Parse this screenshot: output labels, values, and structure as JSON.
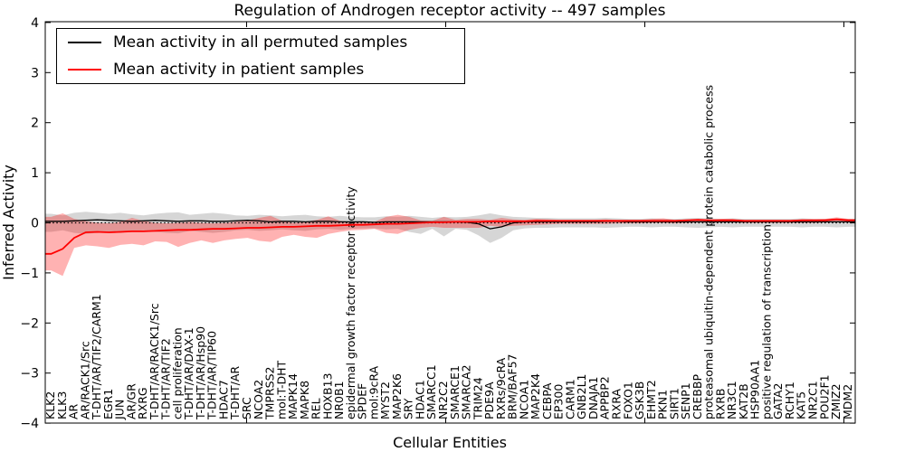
{
  "chart_data": {
    "type": "line",
    "title": "Regulation of Androgen receptor activity -- 497 samples",
    "xlabel": "Cellular Entities",
    "ylabel": "Inferred Activity",
    "ylim": [
      -4,
      4
    ],
    "grid": false,
    "legend_position": "upper left",
    "zero_line": true,
    "yticks": {
      "values": [
        4,
        3,
        2,
        1,
        0,
        -1,
        -2,
        -3,
        -4
      ],
      "labels": [
        "4",
        "3",
        "2",
        "1",
        "0",
        "−1",
        "−2",
        "−3",
        "−4"
      ]
    },
    "categories": [
      "KLK2",
      "KLK3",
      "AR",
      "AR/RACK1/Src",
      "T-DHT/AR/TIF2/CARM1",
      "EGR1",
      "JUN",
      "AR/GR",
      "RXRG",
      "T-DHT/AR/RACK1/Src",
      "T-DHT/AR/TIF2",
      "cell proliferation",
      "T-DHT/AR/DAX-1",
      "T-DHT/AR/Hsp90",
      "T-DHT/AR/TIP60",
      "HDAC7",
      "T-DHT/AR",
      "SRC",
      "NCOA2",
      "TMPRSS2",
      "mol:T-DHT",
      "MAPK14",
      "MAPK8",
      "REL",
      "HOXB13",
      "NR0B1",
      "epidermal growth factor receptor activity",
      "SPDEF",
      "mol:9cRA",
      "MYST2",
      "MAP2K6",
      "SRY",
      "HDAC1",
      "SMARCC1",
      "NR2C2",
      "SMARCE1",
      "SMARCA2",
      "TRIM24",
      "PDE9A",
      "RXRs/9cRA",
      "BRM/BAF57",
      "NCOA1",
      "MAP2K4",
      "CEBPA",
      "EP300",
      "CARM1",
      "GNB2L1",
      "DNAJA1",
      "APPBP2",
      "RXRA",
      "FOXO1",
      "GSK3B",
      "EHMT2",
      "PKN1",
      "SIRT1",
      "SENP1",
      "CREBBP",
      "proteasomal ubiquitin-dependent protein catabolic process",
      "RXRB",
      "NR3C1",
      "KAT2B",
      "HSP90AA1",
      "positive regulation of transcription",
      "GATA2",
      "RCHY1",
      "KAT5",
      "NR2C1",
      "POU2F1",
      "ZMIZ2",
      "MDM2"
    ],
    "series": [
      {
        "name": "Mean activity in all permuted samples",
        "color": "#000000",
        "values": [
          0.03,
          0.03,
          0.04,
          0.05,
          0.06,
          0.05,
          0.04,
          0.03,
          0.04,
          0.05,
          0.04,
          0.03,
          0.04,
          0.04,
          0.03,
          0.03,
          0.04,
          0.05,
          0.04,
          0.02,
          0.03,
          0.03,
          0.02,
          0.03,
          0.03,
          0.02,
          0.02,
          0.02,
          0.01,
          0.02,
          0.02,
          0.02,
          0.02,
          0.02,
          0.02,
          0.02,
          0.01,
          -0.02,
          -0.12,
          -0.08,
          0.0,
          0.02,
          0.02,
          0.02,
          0.02,
          0.02,
          0.02,
          0.02,
          0.03,
          0.03,
          0.02,
          0.02,
          0.02,
          0.02,
          0.02,
          0.02,
          0.02,
          0.02,
          0.02,
          0.02,
          0.02,
          0.02,
          0.02,
          0.02,
          0.02,
          0.02,
          0.02,
          0.02,
          0.02,
          0.02
        ],
        "band": {
          "fill": "#000000",
          "opacity": 0.16,
          "upper": [
            0.18,
            0.15,
            0.2,
            0.22,
            0.2,
            0.18,
            0.2,
            0.17,
            0.15,
            0.18,
            0.2,
            0.21,
            0.16,
            0.18,
            0.2,
            0.18,
            0.15,
            0.14,
            0.16,
            0.15,
            0.13,
            0.15,
            0.16,
            0.13,
            0.12,
            0.14,
            0.12,
            0.11,
            0.11,
            0.13,
            0.12,
            0.14,
            0.12,
            0.1,
            0.12,
            0.11,
            0.12,
            0.15,
            0.19,
            0.15,
            0.12,
            0.11,
            0.1,
            0.1,
            0.09,
            0.09,
            0.09,
            0.09,
            0.1,
            0.09,
            0.08,
            0.08,
            0.09,
            0.08,
            0.08,
            0.09,
            0.1,
            0.09,
            0.08,
            0.09,
            0.08,
            0.08,
            0.08,
            0.08,
            0.08,
            0.09,
            0.08,
            0.08,
            0.09,
            0.08
          ],
          "lower": [
            -0.18,
            -0.15,
            -0.2,
            -0.22,
            -0.2,
            -0.18,
            -0.2,
            -0.17,
            -0.15,
            -0.18,
            -0.2,
            -0.21,
            -0.16,
            -0.18,
            -0.2,
            -0.18,
            -0.15,
            -0.14,
            -0.16,
            -0.15,
            -0.13,
            -0.15,
            -0.16,
            -0.13,
            -0.12,
            -0.14,
            -0.12,
            -0.11,
            -0.11,
            -0.13,
            -0.12,
            -0.18,
            -0.22,
            -0.12,
            -0.27,
            -0.12,
            -0.14,
            -0.25,
            -0.4,
            -0.3,
            -0.15,
            -0.11,
            -0.1,
            -0.1,
            -0.09,
            -0.09,
            -0.09,
            -0.09,
            -0.1,
            -0.09,
            -0.08,
            -0.08,
            -0.09,
            -0.08,
            -0.08,
            -0.09,
            -0.1,
            -0.09,
            -0.08,
            -0.09,
            -0.08,
            -0.08,
            -0.08,
            -0.08,
            -0.08,
            -0.09,
            -0.08,
            -0.08,
            -0.09,
            -0.08
          ]
        }
      },
      {
        "name": "Mean activity in patient samples",
        "color": "#ff0000",
        "values": [
          -0.62,
          -0.52,
          -0.3,
          -0.19,
          -0.18,
          -0.19,
          -0.18,
          -0.17,
          -0.17,
          -0.16,
          -0.15,
          -0.14,
          -0.14,
          -0.13,
          -0.12,
          -0.12,
          -0.11,
          -0.1,
          -0.1,
          -0.09,
          -0.08,
          -0.08,
          -0.07,
          -0.06,
          -0.06,
          -0.05,
          -0.04,
          -0.04,
          -0.03,
          -0.02,
          -0.02,
          -0.01,
          0.0,
          0.01,
          0.01,
          0.02,
          0.02,
          0.02,
          0.03,
          0.03,
          0.03,
          0.03,
          0.04,
          0.04,
          0.04,
          0.04,
          0.04,
          0.04,
          0.04,
          0.04,
          0.04,
          0.04,
          0.04,
          0.04,
          0.04,
          0.05,
          0.06,
          0.05,
          0.05,
          0.05,
          0.04,
          0.04,
          0.04,
          0.04,
          0.04,
          0.05,
          0.05,
          0.05,
          0.07,
          0.05
        ],
        "band": {
          "fill": "#ff0000",
          "opacity": 0.3,
          "upper": [
            0.12,
            0.19,
            0.08,
            0.03,
            0.0,
            -0.01,
            0.02,
            0.1,
            0.04,
            0.0,
            -0.01,
            0.0,
            0.02,
            0.0,
            -0.01,
            0.0,
            0.02,
            0.05,
            0.1,
            0.14,
            0.04,
            0.0,
            0.02,
            0.06,
            0.13,
            0.04,
            0.02,
            0.02,
            0.02,
            0.12,
            0.16,
            0.12,
            0.05,
            0.04,
            0.12,
            0.06,
            0.08,
            0.08,
            0.06,
            0.1,
            0.07,
            0.06,
            0.08,
            0.07,
            0.06,
            0.06,
            0.06,
            0.06,
            0.07,
            0.06,
            0.06,
            0.06,
            0.08,
            0.09,
            0.06,
            0.06,
            0.07,
            0.06,
            0.08,
            0.08,
            0.06,
            0.06,
            0.06,
            0.06,
            0.06,
            0.07,
            0.07,
            0.08,
            0.11,
            0.08
          ],
          "lower": [
            -0.95,
            -1.06,
            -0.5,
            -0.45,
            -0.47,
            -0.5,
            -0.44,
            -0.42,
            -0.45,
            -0.37,
            -0.38,
            -0.48,
            -0.4,
            -0.35,
            -0.4,
            -0.35,
            -0.32,
            -0.3,
            -0.36,
            -0.38,
            -0.28,
            -0.24,
            -0.28,
            -0.3,
            -0.22,
            -0.18,
            -0.15,
            -0.14,
            -0.12,
            -0.2,
            -0.22,
            -0.14,
            -0.1,
            -0.08,
            -0.1,
            -0.1,
            -0.1,
            -0.1,
            -0.06,
            -0.08,
            -0.06,
            -0.05,
            -0.04,
            -0.03,
            -0.02,
            -0.02,
            -0.02,
            -0.02,
            -0.02,
            -0.01,
            -0.01,
            -0.01,
            0.0,
            0.0,
            -0.01,
            0.0,
            0.01,
            0.0,
            0.01,
            0.01,
            0.0,
            0.0,
            0.0,
            0.0,
            0.0,
            0.0,
            0.0,
            0.01,
            0.03,
            0.01
          ]
        }
      }
    ]
  }
}
